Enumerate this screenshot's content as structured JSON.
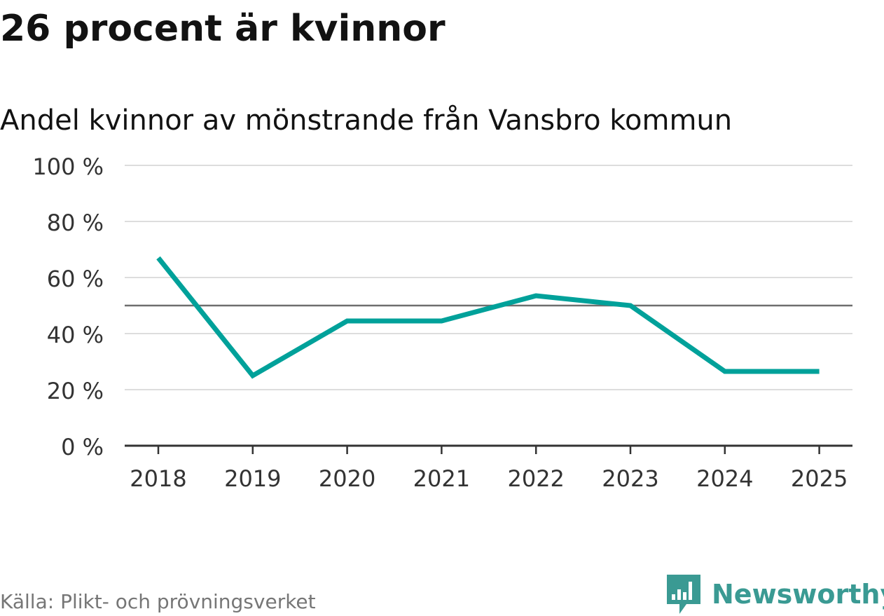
{
  "title": "26 procent är kvinnor",
  "source": "Källa: Plikt- och prövningsverket",
  "brand": {
    "name": "Newsworthy"
  },
  "colors": {
    "line": "#00a19a",
    "grid": "#dddddd",
    "reference": "#6e6e6e",
    "axis": "#333333",
    "brand": "#3a9a93"
  },
  "chart_data": {
    "type": "line",
    "title": "Andel kvinnor av mönstrande från Vansbro kommun",
    "xlabel": "",
    "ylabel": "",
    "categories": [
      "2018",
      "2019",
      "2020",
      "2021",
      "2022",
      "2023",
      "2024",
      "2025"
    ],
    "series": [
      {
        "name": "Andel kvinnor",
        "values": [
          67,
          25,
          44.5,
          44.5,
          53.5,
          50,
          26.5,
          26.5
        ]
      }
    ],
    "reference_line": 50,
    "ylim": [
      0,
      100
    ],
    "yticks": [
      0,
      20,
      40,
      60,
      80,
      100
    ],
    "ytick_labels": [
      "0 %",
      "20 %",
      "40 %",
      "60 %",
      "80 %",
      "100 %"
    ],
    "grid": true
  }
}
